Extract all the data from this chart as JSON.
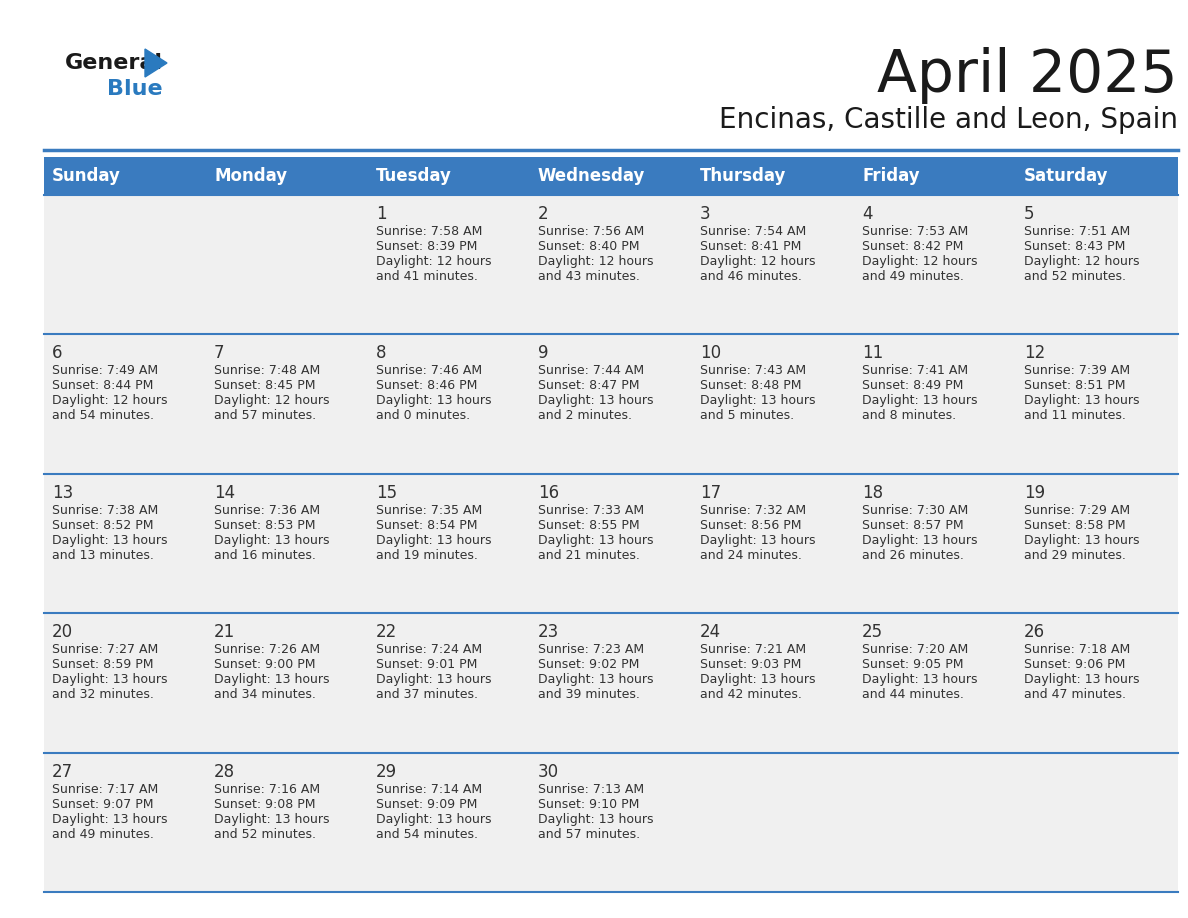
{
  "title": "April 2025",
  "subtitle": "Encinas, Castille and Leon, Spain",
  "header_color": "#3a7bbf",
  "header_text_color": "#ffffff",
  "cell_bg": "#f0f0f0",
  "text_color": "#333333",
  "separator_color": "#3a7bbf",
  "days_of_week": [
    "Sunday",
    "Monday",
    "Tuesday",
    "Wednesday",
    "Thursday",
    "Friday",
    "Saturday"
  ],
  "calendar_data": [
    [
      {
        "day": "",
        "sunrise": "",
        "sunset": "",
        "daylight": ""
      },
      {
        "day": "",
        "sunrise": "",
        "sunset": "",
        "daylight": ""
      },
      {
        "day": "1",
        "sunrise": "Sunrise: 7:58 AM",
        "sunset": "Sunset: 8:39 PM",
        "daylight": "Daylight: 12 hours\nand 41 minutes."
      },
      {
        "day": "2",
        "sunrise": "Sunrise: 7:56 AM",
        "sunset": "Sunset: 8:40 PM",
        "daylight": "Daylight: 12 hours\nand 43 minutes."
      },
      {
        "day": "3",
        "sunrise": "Sunrise: 7:54 AM",
        "sunset": "Sunset: 8:41 PM",
        "daylight": "Daylight: 12 hours\nand 46 minutes."
      },
      {
        "day": "4",
        "sunrise": "Sunrise: 7:53 AM",
        "sunset": "Sunset: 8:42 PM",
        "daylight": "Daylight: 12 hours\nand 49 minutes."
      },
      {
        "day": "5",
        "sunrise": "Sunrise: 7:51 AM",
        "sunset": "Sunset: 8:43 PM",
        "daylight": "Daylight: 12 hours\nand 52 minutes."
      }
    ],
    [
      {
        "day": "6",
        "sunrise": "Sunrise: 7:49 AM",
        "sunset": "Sunset: 8:44 PM",
        "daylight": "Daylight: 12 hours\nand 54 minutes."
      },
      {
        "day": "7",
        "sunrise": "Sunrise: 7:48 AM",
        "sunset": "Sunset: 8:45 PM",
        "daylight": "Daylight: 12 hours\nand 57 minutes."
      },
      {
        "day": "8",
        "sunrise": "Sunrise: 7:46 AM",
        "sunset": "Sunset: 8:46 PM",
        "daylight": "Daylight: 13 hours\nand 0 minutes."
      },
      {
        "day": "9",
        "sunrise": "Sunrise: 7:44 AM",
        "sunset": "Sunset: 8:47 PM",
        "daylight": "Daylight: 13 hours\nand 2 minutes."
      },
      {
        "day": "10",
        "sunrise": "Sunrise: 7:43 AM",
        "sunset": "Sunset: 8:48 PM",
        "daylight": "Daylight: 13 hours\nand 5 minutes."
      },
      {
        "day": "11",
        "sunrise": "Sunrise: 7:41 AM",
        "sunset": "Sunset: 8:49 PM",
        "daylight": "Daylight: 13 hours\nand 8 minutes."
      },
      {
        "day": "12",
        "sunrise": "Sunrise: 7:39 AM",
        "sunset": "Sunset: 8:51 PM",
        "daylight": "Daylight: 13 hours\nand 11 minutes."
      }
    ],
    [
      {
        "day": "13",
        "sunrise": "Sunrise: 7:38 AM",
        "sunset": "Sunset: 8:52 PM",
        "daylight": "Daylight: 13 hours\nand 13 minutes."
      },
      {
        "day": "14",
        "sunrise": "Sunrise: 7:36 AM",
        "sunset": "Sunset: 8:53 PM",
        "daylight": "Daylight: 13 hours\nand 16 minutes."
      },
      {
        "day": "15",
        "sunrise": "Sunrise: 7:35 AM",
        "sunset": "Sunset: 8:54 PM",
        "daylight": "Daylight: 13 hours\nand 19 minutes."
      },
      {
        "day": "16",
        "sunrise": "Sunrise: 7:33 AM",
        "sunset": "Sunset: 8:55 PM",
        "daylight": "Daylight: 13 hours\nand 21 minutes."
      },
      {
        "day": "17",
        "sunrise": "Sunrise: 7:32 AM",
        "sunset": "Sunset: 8:56 PM",
        "daylight": "Daylight: 13 hours\nand 24 minutes."
      },
      {
        "day": "18",
        "sunrise": "Sunrise: 7:30 AM",
        "sunset": "Sunset: 8:57 PM",
        "daylight": "Daylight: 13 hours\nand 26 minutes."
      },
      {
        "day": "19",
        "sunrise": "Sunrise: 7:29 AM",
        "sunset": "Sunset: 8:58 PM",
        "daylight": "Daylight: 13 hours\nand 29 minutes."
      }
    ],
    [
      {
        "day": "20",
        "sunrise": "Sunrise: 7:27 AM",
        "sunset": "Sunset: 8:59 PM",
        "daylight": "Daylight: 13 hours\nand 32 minutes."
      },
      {
        "day": "21",
        "sunrise": "Sunrise: 7:26 AM",
        "sunset": "Sunset: 9:00 PM",
        "daylight": "Daylight: 13 hours\nand 34 minutes."
      },
      {
        "day": "22",
        "sunrise": "Sunrise: 7:24 AM",
        "sunset": "Sunset: 9:01 PM",
        "daylight": "Daylight: 13 hours\nand 37 minutes."
      },
      {
        "day": "23",
        "sunrise": "Sunrise: 7:23 AM",
        "sunset": "Sunset: 9:02 PM",
        "daylight": "Daylight: 13 hours\nand 39 minutes."
      },
      {
        "day": "24",
        "sunrise": "Sunrise: 7:21 AM",
        "sunset": "Sunset: 9:03 PM",
        "daylight": "Daylight: 13 hours\nand 42 minutes."
      },
      {
        "day": "25",
        "sunrise": "Sunrise: 7:20 AM",
        "sunset": "Sunset: 9:05 PM",
        "daylight": "Daylight: 13 hours\nand 44 minutes."
      },
      {
        "day": "26",
        "sunrise": "Sunrise: 7:18 AM",
        "sunset": "Sunset: 9:06 PM",
        "daylight": "Daylight: 13 hours\nand 47 minutes."
      }
    ],
    [
      {
        "day": "27",
        "sunrise": "Sunrise: 7:17 AM",
        "sunset": "Sunset: 9:07 PM",
        "daylight": "Daylight: 13 hours\nand 49 minutes."
      },
      {
        "day": "28",
        "sunrise": "Sunrise: 7:16 AM",
        "sunset": "Sunset: 9:08 PM",
        "daylight": "Daylight: 13 hours\nand 52 minutes."
      },
      {
        "day": "29",
        "sunrise": "Sunrise: 7:14 AM",
        "sunset": "Sunset: 9:09 PM",
        "daylight": "Daylight: 13 hours\nand 54 minutes."
      },
      {
        "day": "30",
        "sunrise": "Sunrise: 7:13 AM",
        "sunset": "Sunset: 9:10 PM",
        "daylight": "Daylight: 13 hours\nand 57 minutes."
      },
      {
        "day": "",
        "sunrise": "",
        "sunset": "",
        "daylight": ""
      },
      {
        "day": "",
        "sunrise": "",
        "sunset": "",
        "daylight": ""
      },
      {
        "day": "",
        "sunrise": "",
        "sunset": "",
        "daylight": ""
      }
    ]
  ]
}
